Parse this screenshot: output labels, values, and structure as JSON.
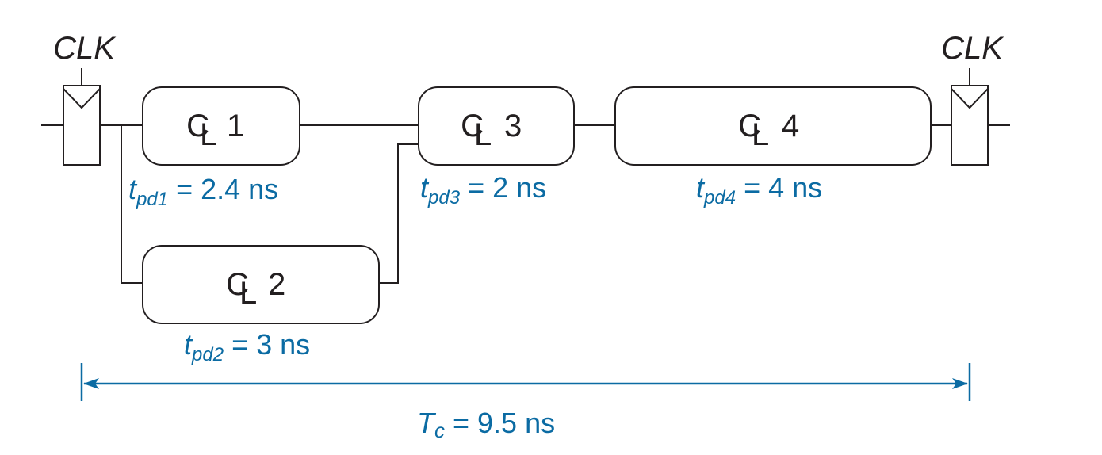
{
  "colors": {
    "ink": "#231f20",
    "accent": "#0b6ba3"
  },
  "registers": {
    "left_clock": "CLK",
    "right_clock": "CLK"
  },
  "blocks": [
    {
      "id": "cl1",
      "symbol": "C",
      "subsymbol": "L",
      "number": "1",
      "delay": {
        "t": "t",
        "sub": "pd1",
        "rest": " = 2.4 ns"
      }
    },
    {
      "id": "cl2",
      "symbol": "C",
      "subsymbol": "L",
      "number": "2",
      "delay": {
        "t": "t",
        "sub": "pd2",
        "rest": " = 3 ns"
      }
    },
    {
      "id": "cl3",
      "symbol": "C",
      "subsymbol": "L",
      "number": "3",
      "delay": {
        "t": "t",
        "sub": "pd3",
        "rest": " = 2 ns"
      }
    },
    {
      "id": "cl4",
      "symbol": "C",
      "subsymbol": "L",
      "number": "4",
      "delay": {
        "t": "t",
        "sub": "pd4",
        "rest": " = 4 ns"
      }
    }
  ],
  "cycle": {
    "t": "T",
    "sub": "c",
    "rest": " = 9.5 ns"
  }
}
